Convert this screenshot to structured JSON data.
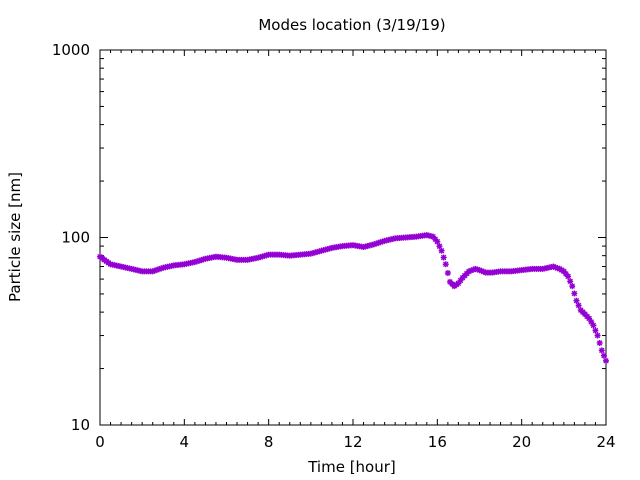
{
  "chart_data": {
    "type": "scatter",
    "title": "Modes location (3/19/19)",
    "xlabel": "Time [hour]",
    "ylabel": "Particle size [nm]",
    "xlim": [
      0,
      24
    ],
    "ylim": [
      10,
      1000
    ],
    "yscale": "log",
    "x_ticks": [
      0,
      4,
      8,
      12,
      16,
      20,
      24
    ],
    "x_tick_labels": [
      "0",
      "4",
      "8",
      "12",
      "16",
      "20",
      "24"
    ],
    "y_ticks": [
      10,
      100,
      1000
    ],
    "y_tick_labels": [
      "10",
      "100",
      "1000"
    ],
    "grid": false,
    "legend": "none",
    "marker_color": "#9400d3",
    "marker": "plus-cross",
    "series": [
      {
        "x": [
          0,
          0.5,
          1,
          1.5,
          2,
          2.5,
          3,
          3.5,
          4,
          4.5,
          5,
          5.5,
          6,
          6.5,
          7,
          7.5,
          8,
          8.5,
          9,
          9.5,
          10,
          10.5,
          11,
          11.5,
          12,
          12.5,
          13,
          13.5,
          14,
          14.5,
          15,
          15.5,
          15.8,
          16,
          16.2,
          16.4,
          16.6,
          16.8,
          17,
          17.2,
          17.5,
          17.8,
          18,
          18.3,
          18.6,
          19,
          19.5,
          20,
          20.5,
          21,
          21.5,
          21.8,
          22,
          22.2,
          22.4,
          22.6,
          22.8,
          23,
          23.2,
          23.4,
          23.6,
          23.8,
          24
        ],
        "y": [
          79,
          72,
          70,
          68,
          66,
          66,
          69,
          71,
          72,
          74,
          77,
          79,
          78,
          76,
          76,
          78,
          81,
          81,
          80,
          81,
          82,
          85,
          88,
          90,
          91,
          89,
          92,
          96,
          99,
          100,
          101,
          103,
          101,
          95,
          85,
          72,
          58,
          55,
          57,
          61,
          66,
          68,
          67,
          65,
          65,
          66,
          66,
          67,
          68,
          68,
          70,
          68,
          66,
          62,
          55,
          46,
          41,
          39,
          37,
          34,
          30,
          25,
          22
        ]
      }
    ]
  }
}
